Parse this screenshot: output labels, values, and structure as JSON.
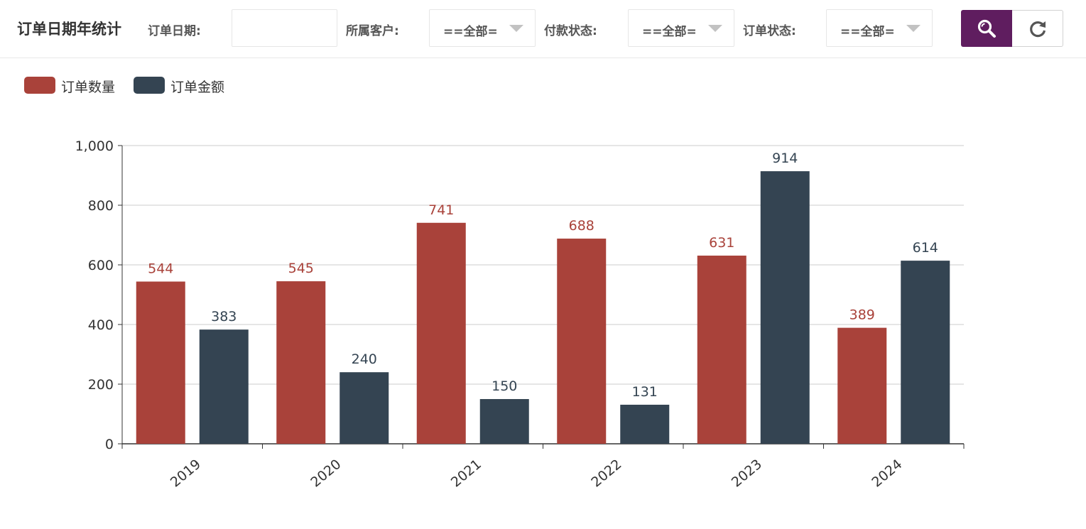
{
  "header": {
    "title": "订单日期年统计",
    "filters": {
      "order_date_label": "订单日期:",
      "order_date_value": "",
      "customer_label": "所属客户:",
      "customer_value": "==全部=",
      "payment_label": "付款状态:",
      "payment_value": "==全部=",
      "order_status_label": "订单状态:",
      "order_status_value": "==全部="
    },
    "search_icon": "search-icon",
    "refresh_icon": "refresh-icon",
    "accent_color": "#5f1d5f"
  },
  "chart_data": {
    "type": "bar",
    "categories": [
      "2019",
      "2020",
      "2021",
      "2022",
      "2023",
      "2024"
    ],
    "series": [
      {
        "name": "订单数量",
        "color": "#a9423a",
        "values": [
          544,
          545,
          741,
          688,
          631,
          389
        ]
      },
      {
        "name": "订单金额",
        "color": "#344452",
        "values": [
          383,
          240,
          150,
          131,
          914,
          614
        ]
      }
    ],
    "y_ticks": [
      "0",
      "200",
      "400",
      "600",
      "800",
      "1,000"
    ],
    "ylim": [
      0,
      1000
    ],
    "grid": true,
    "legend_position": "top-left",
    "xlabel": "",
    "ylabel": "",
    "x_tick_rotation": 40
  }
}
